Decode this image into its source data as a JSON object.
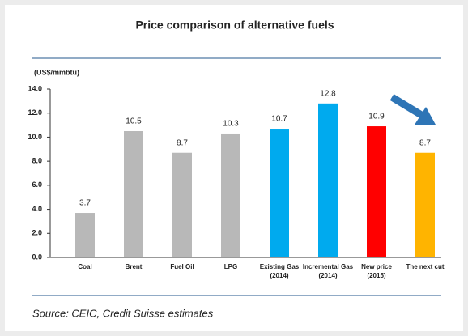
{
  "chart_data": {
    "type": "bar",
    "title": "Price comparison of alternative fuels",
    "y_axis_label": "(US$/mmbtu)",
    "categories": [
      "Coal",
      "Brent",
      "Fuel Oil",
      "LPG",
      "Existing Gas (2014)",
      "Incremental Gas (2014)",
      "New price (2015)",
      "The next cut"
    ],
    "values": [
      3.7,
      10.5,
      8.7,
      10.3,
      10.7,
      12.8,
      10.9,
      8.7
    ],
    "colors": [
      "#b8b8b8",
      "#b8b8b8",
      "#b8b8b8",
      "#b8b8b8",
      "#00aaee",
      "#00aaee",
      "#ff0000",
      "#ffb400"
    ],
    "ylim": [
      0,
      14
    ],
    "yticks": [
      {
        "value": 0,
        "label": "0.0"
      },
      {
        "value": 2,
        "label": "2.0"
      },
      {
        "value": 4,
        "label": "4.0"
      },
      {
        "value": 6,
        "label": "6.0"
      },
      {
        "value": 8,
        "label": "8.0"
      },
      {
        "value": 10,
        "label": "10.0"
      },
      {
        "value": 12,
        "label": "12.0"
      },
      {
        "value": 14,
        "label": "14.0"
      }
    ],
    "source": "Source: CEIC, Credit Suisse estimates"
  }
}
